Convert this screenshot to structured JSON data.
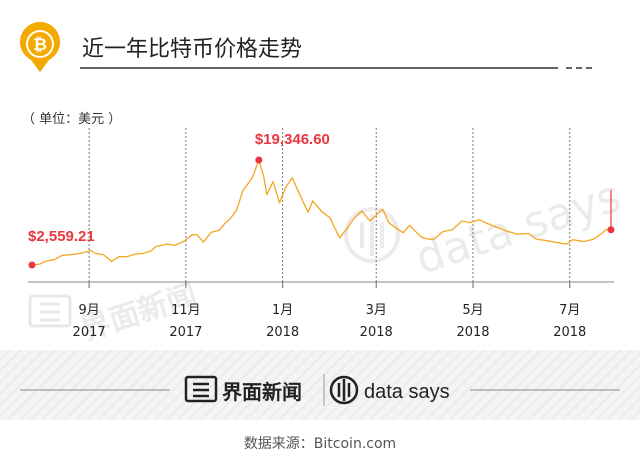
{
  "header": {
    "title": "近一年比特币价格走势",
    "unit_label": "（ 单位：美元 ）",
    "icon": "bitcoin-pin-icon"
  },
  "colors": {
    "line": "#f5a623",
    "highlight": "#e8373f",
    "badge": "#f2a900",
    "grid": "#777777"
  },
  "watermark": {
    "brand_cn": "界面新闻",
    "brand_en": "data says"
  },
  "footer": {
    "brand_cn": "界面新闻",
    "brand_en": "data says",
    "source": "数据来源：Bitcoin.com"
  },
  "chart_data": {
    "type": "line",
    "x_axis": {
      "ticks": [
        {
          "date": "2017-09-01",
          "month": "9月",
          "year": "2017"
        },
        {
          "date": "2017-11-01",
          "month": "11月",
          "year": "2017"
        },
        {
          "date": "2018-01-01",
          "month": "1月",
          "year": "2018"
        },
        {
          "date": "2018-03-01",
          "month": "3月",
          "year": "2018"
        },
        {
          "date": "2018-05-01",
          "month": "5月",
          "year": "2018"
        },
        {
          "date": "2018-07-01",
          "month": "7月",
          "year": "2018"
        }
      ],
      "start": "2017-07-27",
      "end": "2018-07-27"
    },
    "ylim": [
      0,
      20000
    ],
    "grid": "vertical dashed lines at month ticks",
    "annotations": [
      {
        "label": "$2,559.21",
        "date": "2017-07-27",
        "value": 2559.21
      },
      {
        "label": "$19,346.60",
        "date": "2017-12-17",
        "value": 19346.6
      }
    ],
    "series": [
      {
        "points": [
          [
            "2017-07-27",
            2559
          ],
          [
            "2017-08-01",
            2700
          ],
          [
            "2017-08-05",
            3200
          ],
          [
            "2017-08-10",
            3400
          ],
          [
            "2017-08-15",
            4100
          ],
          [
            "2017-08-20",
            4200
          ],
          [
            "2017-08-25",
            4350
          ],
          [
            "2017-08-31",
            4700
          ],
          [
            "2017-09-02",
            4900
          ],
          [
            "2017-09-05",
            4400
          ],
          [
            "2017-09-10",
            4200
          ],
          [
            "2017-09-14",
            3400
          ],
          [
            "2017-09-15",
            3100
          ],
          [
            "2017-09-20",
            3900
          ],
          [
            "2017-09-25",
            3900
          ],
          [
            "2017-09-30",
            4300
          ],
          [
            "2017-10-05",
            4400
          ],
          [
            "2017-10-10",
            4800
          ],
          [
            "2017-10-13",
            5500
          ],
          [
            "2017-10-20",
            5900
          ],
          [
            "2017-10-25",
            5700
          ],
          [
            "2017-10-31",
            6400
          ],
          [
            "2017-11-05",
            7400
          ],
          [
            "2017-11-08",
            7400
          ],
          [
            "2017-11-12",
            6200
          ],
          [
            "2017-11-17",
            7800
          ],
          [
            "2017-11-22",
            8100
          ],
          [
            "2017-11-26",
            9300
          ],
          [
            "2017-11-29",
            10000
          ],
          [
            "2017-12-03",
            11300
          ],
          [
            "2017-12-07",
            14500
          ],
          [
            "2017-12-10",
            15500
          ],
          [
            "2017-12-13",
            16600
          ],
          [
            "2017-12-17",
            19346.6
          ],
          [
            "2017-12-20",
            16800
          ],
          [
            "2017-12-22",
            13800
          ],
          [
            "2017-12-26",
            15900
          ],
          [
            "2017-12-30",
            12500
          ],
          [
            "2018-01-03",
            15000
          ],
          [
            "2018-01-07",
            16500
          ],
          [
            "2018-01-12",
            13700
          ],
          [
            "2018-01-17",
            11000
          ],
          [
            "2018-01-20",
            12800
          ],
          [
            "2018-01-26",
            11000
          ],
          [
            "2018-01-31",
            10100
          ],
          [
            "2018-02-02",
            8900
          ],
          [
            "2018-02-06",
            6900
          ],
          [
            "2018-02-10",
            8200
          ],
          [
            "2018-02-15",
            10000
          ],
          [
            "2018-02-20",
            11200
          ],
          [
            "2018-02-25",
            9600
          ],
          [
            "2018-03-05",
            11500
          ],
          [
            "2018-03-09",
            9300
          ],
          [
            "2018-03-15",
            8200
          ],
          [
            "2018-03-18",
            7700
          ],
          [
            "2018-03-22",
            8900
          ],
          [
            "2018-03-29",
            7100
          ],
          [
            "2018-04-01",
            6800
          ],
          [
            "2018-04-06",
            6600
          ],
          [
            "2018-04-12",
            7900
          ],
          [
            "2018-04-18",
            8200
          ],
          [
            "2018-04-24",
            9600
          ],
          [
            "2018-04-29",
            9300
          ],
          [
            "2018-05-05",
            9800
          ],
          [
            "2018-05-10",
            9200
          ],
          [
            "2018-05-15",
            8700
          ],
          [
            "2018-05-22",
            8000
          ],
          [
            "2018-05-29",
            7500
          ],
          [
            "2018-06-05",
            7600
          ],
          [
            "2018-06-10",
            6700
          ],
          [
            "2018-06-15",
            6500
          ],
          [
            "2018-06-24",
            6100
          ],
          [
            "2018-06-29",
            5900
          ],
          [
            "2018-07-03",
            6600
          ],
          [
            "2018-07-10",
            6300
          ],
          [
            "2018-07-16",
            6700
          ],
          [
            "2018-07-20",
            7400
          ],
          [
            "2018-07-24",
            8200
          ],
          [
            "2018-07-27",
            8200
          ]
        ]
      }
    ]
  }
}
